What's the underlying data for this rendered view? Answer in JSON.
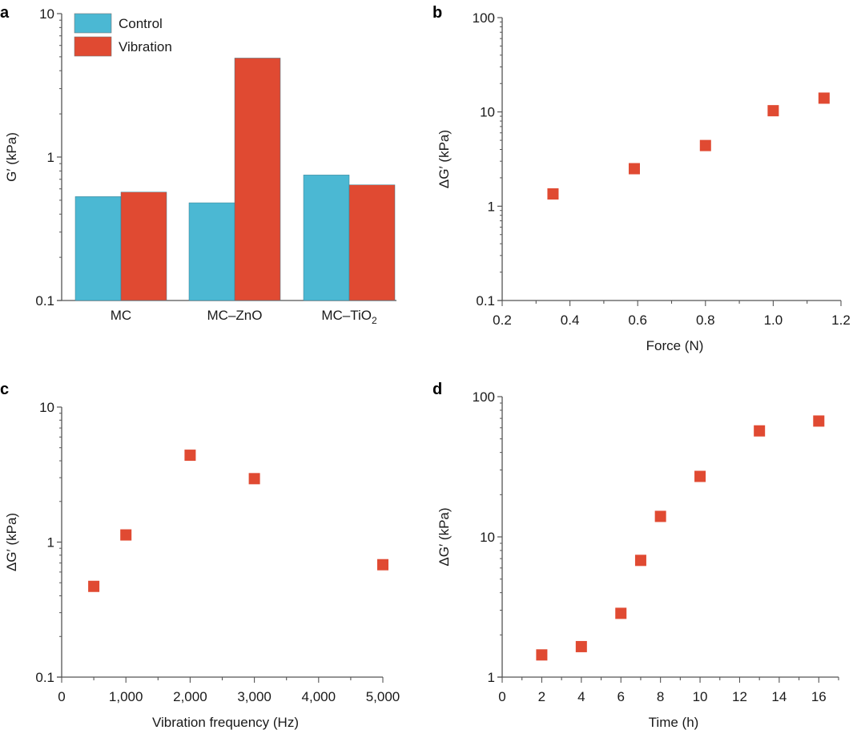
{
  "chart_data": [
    {
      "panel": "a",
      "type": "bar",
      "title": "",
      "xlabel": "",
      "ylabel": "G′ (kPa)",
      "yscale": "log",
      "ylim": [
        0.1,
        10
      ],
      "yticks": [
        "0.1",
        "1",
        "10"
      ],
      "categories": [
        "MC",
        "MC–ZnO",
        "MC–TiO2"
      ],
      "category_labels": [
        {
          "main": "MC",
          "sub": ""
        },
        {
          "main": "MC–ZnO",
          "sub": ""
        },
        {
          "main": "MC–TiO",
          "sub": "2"
        }
      ],
      "series": [
        {
          "name": "Control",
          "color": "#4BB8D3",
          "values": [
            0.53,
            0.48,
            0.75
          ]
        },
        {
          "name": "Vibration",
          "color": "#E04A32",
          "values": [
            0.57,
            4.9,
            0.64
          ]
        }
      ],
      "legend": "top-left",
      "grid": false
    },
    {
      "panel": "b",
      "type": "scatter",
      "xlabel": "Force (N)",
      "ylabel": "ΔG′ (kPa)",
      "yscale": "log",
      "xlim": [
        0.2,
        1.2
      ],
      "ylim": [
        0.1,
        100
      ],
      "xticks": [
        "0.2",
        "0.4",
        "0.6",
        "0.8",
        "1.0",
        "1.2"
      ],
      "yticks": [
        "0.1",
        "1",
        "10",
        "100"
      ],
      "color": "#E04A32",
      "x": [
        0.35,
        0.59,
        0.8,
        1.0,
        1.15
      ],
      "y": [
        1.35,
        2.5,
        4.4,
        10.3,
        14
      ],
      "grid": false
    },
    {
      "panel": "c",
      "type": "scatter",
      "xlabel": "Vibration frequency (Hz)",
      "ylabel": "ΔG′ (kPa)",
      "yscale": "log",
      "xlim": [
        0,
        5000
      ],
      "ylim": [
        0.1,
        10
      ],
      "xticks": [
        "0",
        "1,000",
        "2,000",
        "3,000",
        "4,000",
        "5,000"
      ],
      "yticks": [
        "0.1",
        "1",
        "10"
      ],
      "color": "#E04A32",
      "x": [
        500,
        1000,
        2000,
        3000,
        5000
      ],
      "y": [
        0.47,
        1.13,
        4.4,
        2.95,
        0.68
      ],
      "grid": false
    },
    {
      "panel": "d",
      "type": "scatter",
      "xlabel": "Time (h)",
      "ylabel": "ΔG′ (kPa)",
      "yscale": "log",
      "xlim": [
        0,
        17
      ],
      "ylim": [
        1,
        100
      ],
      "xticks": [
        "0",
        "2",
        "4",
        "6",
        "8",
        "10",
        "12",
        "14",
        "16"
      ],
      "yticks": [
        "1",
        "10",
        "100"
      ],
      "color": "#E04A32",
      "x": [
        2,
        4,
        6,
        7,
        8,
        10,
        13,
        16
      ],
      "y": [
        1.44,
        1.65,
        2.85,
        6.8,
        14,
        27,
        57,
        67
      ],
      "grid": false
    }
  ]
}
